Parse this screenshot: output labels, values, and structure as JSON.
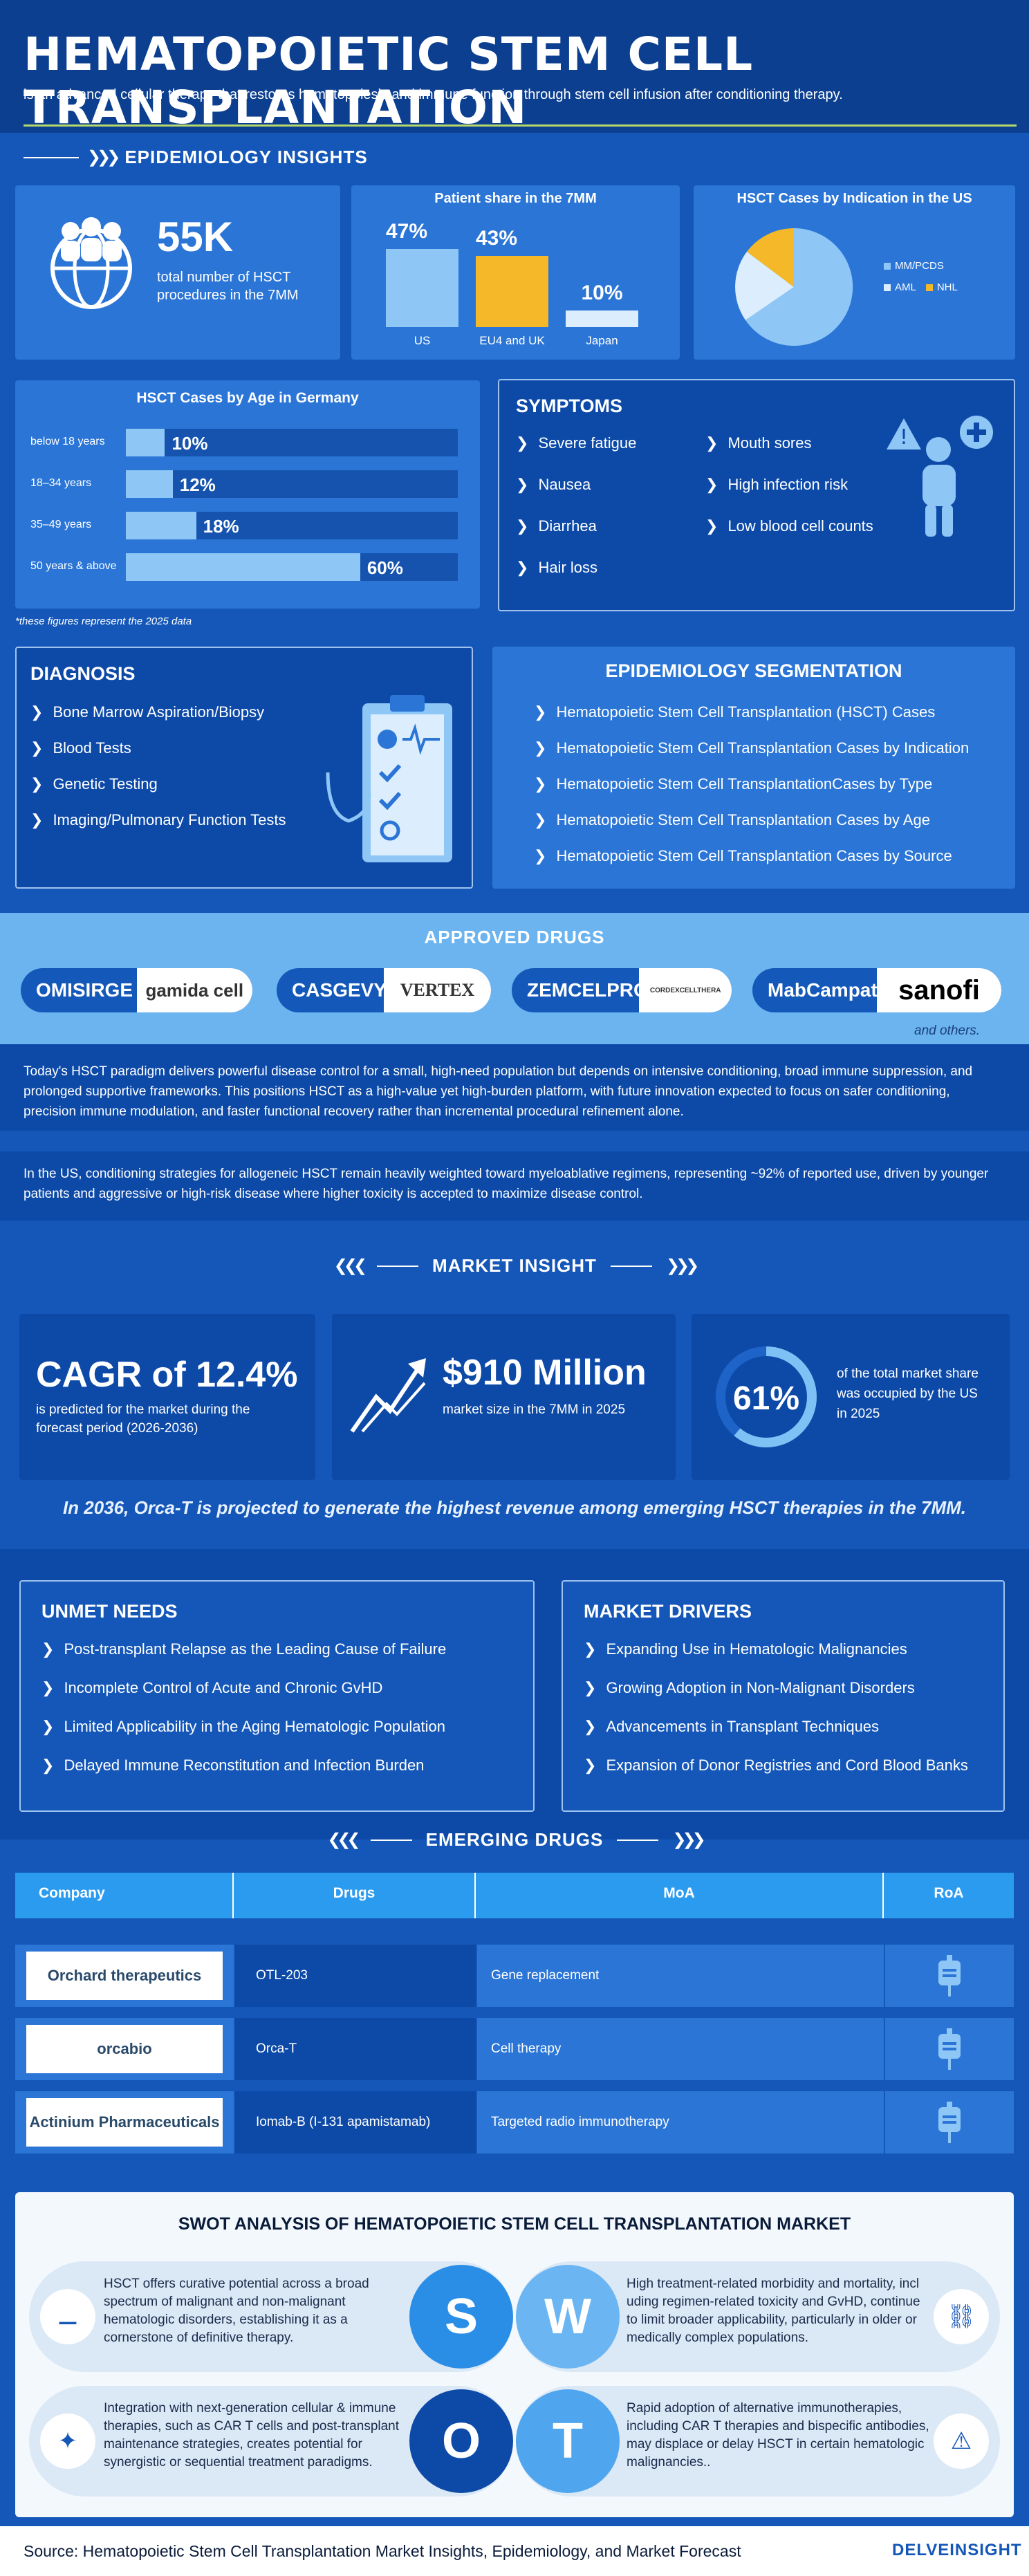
{
  "header": {
    "title": "HEMATOPOIETIC STEM CELL TRANSPLANTATION",
    "subtitle": "is an advanced cellular therapy that restores hematopoiesis and immune function through stem cell infusion after conditioning therapy."
  },
  "epi": {
    "title": "EPIDEMIOLOGY INSIGHTS",
    "stat_value": "55K",
    "stat_text": "total number of HSCT procedures in the 7MM",
    "share_title": "Patient share in the 7MM",
    "share": [
      {
        "label": "US",
        "value": "47%",
        "pct": 47
      },
      {
        "label": "EU4 and UK",
        "value": "43%",
        "pct": 43
      },
      {
        "label": "Japan",
        "value": "10%",
        "pct": 10
      }
    ],
    "pie_title": "HSCT Cases by Indication in the US",
    "pie_legend": [
      {
        "label": "MM/PCDS",
        "color": "#8ec6f5"
      },
      {
        "label": "AML",
        "color": "#dceefe"
      },
      {
        "label": "NHL",
        "color": "#f5b829"
      }
    ],
    "age_title": "HSCT Cases by Age in Germany",
    "age": [
      {
        "label": "below 18 years",
        "value": "10%",
        "pct": 10
      },
      {
        "label": "18–34 years",
        "value": "12%",
        "pct": 12
      },
      {
        "label": "35–49 years",
        "value": "18%",
        "pct": 18
      },
      {
        "label": "50 years & above",
        "value": "60%",
        "pct": 60
      }
    ],
    "note": "*these figures represent the 2025 data"
  },
  "symptoms": {
    "title": "SYMPTOMS",
    "left": [
      "Severe fatigue",
      "Nausea",
      "Diarrhea",
      "Hair loss"
    ],
    "right": [
      "Mouth sores",
      "High infection risk",
      "Low blood cell counts"
    ]
  },
  "diagnosis": {
    "title": "DIAGNOSIS",
    "items": [
      "Bone Marrow Aspiration/Biopsy",
      "Blood Tests",
      "Genetic Testing",
      "Imaging/Pulmonary Function Tests"
    ]
  },
  "segmentation": {
    "title": "EPIDEMIOLOGY SEGMENTATION",
    "items": [
      "Hematopoietic Stem Cell Transplantation (HSCT) Cases",
      "Hematopoietic Stem Cell Transplantation Cases by Indication",
      "Hematopoietic Stem Cell TransplantationCases by Type",
      "Hematopoietic Stem Cell Transplantation Cases by Age",
      "Hematopoietic Stem Cell Transplantation Cases by Source"
    ]
  },
  "approved": {
    "title": "APPROVED DRUGS",
    "drugs": [
      {
        "name": "OMISIRGE",
        "logo": "gamida cell"
      },
      {
        "name": "CASGEVY",
        "logo": "VERTEX"
      },
      {
        "name": "ZEMCELPRO",
        "logo": "CORDEXCELLTHERA"
      },
      {
        "name": "MabCampath",
        "logo": "sanofi"
      }
    ],
    "others": "and others."
  },
  "paragraph1": "Today's HSCT paradigm delivers powerful disease control for a small, high-need population but depends on intensive conditioning, broad immune suppression, and prolonged supportive frameworks. This positions HSCT as a high-value yet high-burden platform, with future innovation expected to focus on safer conditioning, precision immune modulation, and faster functional recovery rather than incremental procedural refinement alone.",
  "paragraph2": "In the US, conditioning strategies for allogeneic HSCT remain heavily weighted toward myeloablative regimens, representing ~92% of reported use, driven by younger patients and aggressive or high-risk disease where higher toxicity is accepted to maximize disease control.",
  "market": {
    "title": "MARKET INSIGHT",
    "cagr_value": "CAGR of 12.4%",
    "cagr_text": "is predicted for the market during the forecast period (2026-2036)",
    "size_value": "$910 Million",
    "size_text": "market size in the 7MM in 2025",
    "share_value": "61%",
    "share_pct": 61,
    "share_text": "of the total market share was occupied by the US in 2025",
    "headline": "In 2036, Orca-T is projected to generate the highest revenue among emerging HSCT therapies in the 7MM."
  },
  "unmet": {
    "title": "UNMET NEEDS",
    "items": [
      "Post-transplant Relapse as the Leading Cause of Failure",
      "Incomplete Control of Acute and Chronic GvHD",
      "Limited Applicability in the Aging Hematologic Population",
      "Delayed Immune Reconstitution and Infection Burden"
    ]
  },
  "drivers": {
    "title": "MARKET DRIVERS",
    "items": [
      "Expanding Use in Hematologic Malignancies",
      "Growing Adoption in Non-Malignant Disorders",
      "Advancements in Transplant Techniques",
      "Expansion of Donor Registries and Cord Blood Banks"
    ]
  },
  "emerging": {
    "title": "EMERGING DRUGS",
    "headers": [
      "Company",
      "Drugs",
      "MoA",
      "RoA"
    ],
    "rows": [
      {
        "company": "Orchard therapeutics",
        "drug": "OTL-203",
        "moa": "Gene replacement"
      },
      {
        "company": "orcabio",
        "drug": "Orca-T",
        "moa": "Cell therapy"
      },
      {
        "company": "Actinium Pharmaceuticals",
        "drug": "Iomab-B (I-131 apamistamab)",
        "moa": "Targeted radio immunotherapy"
      }
    ]
  },
  "swot": {
    "title": "SWOT ANALYSIS OF HEMATOPOIETIC STEM CELL TRANSPLANTATION MARKET",
    "s": "HSCT offers curative potential across a broad spectrum of malignant and non-malignant hematologic disorders, establishing it as a cornerstone of definitive therapy.",
    "w": "High treatment-related morbidity and mortality, incl uding regimen-related toxicity and GvHD, continue to limit broader applicability, particularly in older or medically complex populations.",
    "o": "Integration with next-generation cellular & immune therapies, such as CAR T cells and post-transplant maintenance strategies, creates potential for synergistic or sequential treatment paradigms.",
    "t": "Rapid adoption of alternative immunotherapies, including CAR T therapies and bispecific antibodies, may displace or delay HSCT in certain hematologic malignancies..",
    "letters": [
      "S",
      "W",
      "O",
      "T"
    ]
  },
  "footer": {
    "source": "Source: Hematopoietic Stem Cell Transplantation Market Insights, Epidemiology, and Market Forecast",
    "brand": "DELVEINSIGHT"
  }
}
